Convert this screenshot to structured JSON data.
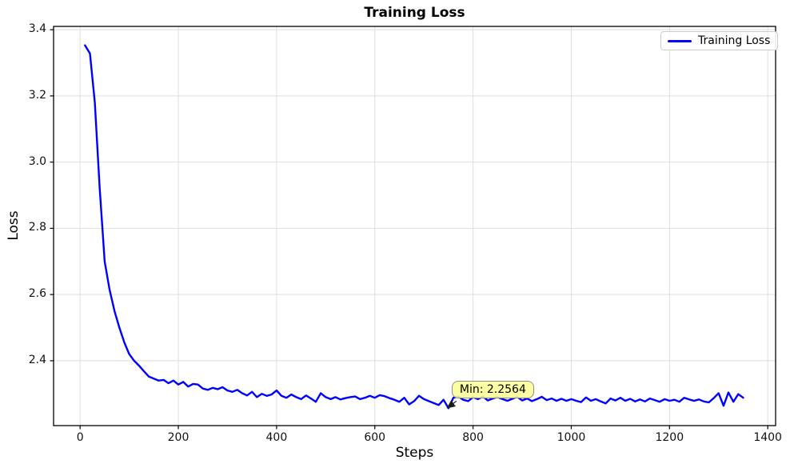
{
  "chart_data": {
    "type": "line",
    "title": "Training Loss",
    "xlabel": "Steps",
    "ylabel": "Loss",
    "grid": true,
    "legend": {
      "position": "upper right",
      "entries": [
        "Training Loss"
      ]
    },
    "line_color": "#0000ff",
    "annotation": {
      "text": "Min: 2.2564",
      "point": {
        "x": 750,
        "y": 2.2564
      },
      "box_color": "#fdfd96",
      "border_color": "#8e8e8e"
    },
    "xlim": [
      -54,
      1416
    ],
    "ylim": [
      2.204,
      3.41
    ],
    "xticks": [
      0,
      200,
      400,
      600,
      800,
      1000,
      1200,
      1400
    ],
    "xtick_labels": [
      "0",
      "200",
      "400",
      "600",
      "800",
      "1000",
      "1200",
      "1400"
    ],
    "yticks": [
      2.4,
      2.6,
      2.8,
      3.0,
      3.2,
      3.4
    ],
    "ytick_labels": [
      "2.4",
      "2.6",
      "2.8",
      "3.0",
      "3.2",
      "3.4"
    ],
    "series": [
      {
        "name": "Training Loss",
        "x": [
          10,
          20,
          30,
          40,
          50,
          60,
          70,
          80,
          90,
          100,
          110,
          120,
          130,
          140,
          150,
          160,
          170,
          180,
          190,
          200,
          210,
          220,
          230,
          240,
          250,
          260,
          270,
          280,
          290,
          300,
          310,
          320,
          330,
          340,
          350,
          360,
          370,
          380,
          390,
          400,
          410,
          420,
          430,
          440,
          450,
          460,
          470,
          480,
          490,
          500,
          510,
          520,
          530,
          540,
          550,
          560,
          570,
          580,
          590,
          600,
          610,
          620,
          630,
          640,
          650,
          660,
          670,
          680,
          690,
          700,
          710,
          720,
          730,
          740,
          750,
          760,
          770,
          780,
          790,
          800,
          810,
          820,
          830,
          840,
          850,
          860,
          870,
          880,
          890,
          900,
          910,
          920,
          930,
          940,
          950,
          960,
          970,
          980,
          990,
          1000,
          1010,
          1020,
          1030,
          1040,
          1050,
          1060,
          1070,
          1080,
          1090,
          1100,
          1110,
          1120,
          1130,
          1140,
          1150,
          1160,
          1170,
          1180,
          1190,
          1200,
          1210,
          1220,
          1230,
          1240,
          1250,
          1260,
          1270,
          1280,
          1290,
          1300,
          1310,
          1320,
          1330,
          1340,
          1350
        ],
        "values": [
          3.353,
          3.328,
          3.18,
          2.92,
          2.7,
          2.615,
          2.55,
          2.5,
          2.455,
          2.42,
          2.4,
          2.385,
          2.368,
          2.352,
          2.346,
          2.34,
          2.342,
          2.332,
          2.34,
          2.328,
          2.336,
          2.322,
          2.33,
          2.328,
          2.316,
          2.312,
          2.318,
          2.314,
          2.32,
          2.31,
          2.306,
          2.312,
          2.302,
          2.295,
          2.306,
          2.29,
          2.3,
          2.294,
          2.298,
          2.31,
          2.294,
          2.288,
          2.298,
          2.29,
          2.284,
          2.295,
          2.286,
          2.276,
          2.302,
          2.29,
          2.284,
          2.29,
          2.283,
          2.287,
          2.29,
          2.292,
          2.284,
          2.288,
          2.294,
          2.288,
          2.296,
          2.293,
          2.287,
          2.282,
          2.276,
          2.288,
          2.268,
          2.278,
          2.294,
          2.284,
          2.278,
          2.272,
          2.266,
          2.282,
          2.2564,
          2.288,
          2.292,
          2.282,
          2.278,
          2.29,
          2.284,
          2.292,
          2.28,
          2.286,
          2.29,
          2.284,
          2.279,
          2.285,
          2.291,
          2.28,
          2.286,
          2.278,
          2.284,
          2.291,
          2.281,
          2.286,
          2.279,
          2.285,
          2.279,
          2.284,
          2.279,
          2.275,
          2.289,
          2.279,
          2.284,
          2.277,
          2.271,
          2.286,
          2.28,
          2.288,
          2.279,
          2.285,
          2.277,
          2.283,
          2.277,
          2.286,
          2.281,
          2.276,
          2.284,
          2.279,
          2.282,
          2.276,
          2.288,
          2.283,
          2.279,
          2.283,
          2.277,
          2.274,
          2.287,
          2.302,
          2.264,
          2.304,
          2.276,
          2.299,
          2.288
        ]
      }
    ]
  }
}
